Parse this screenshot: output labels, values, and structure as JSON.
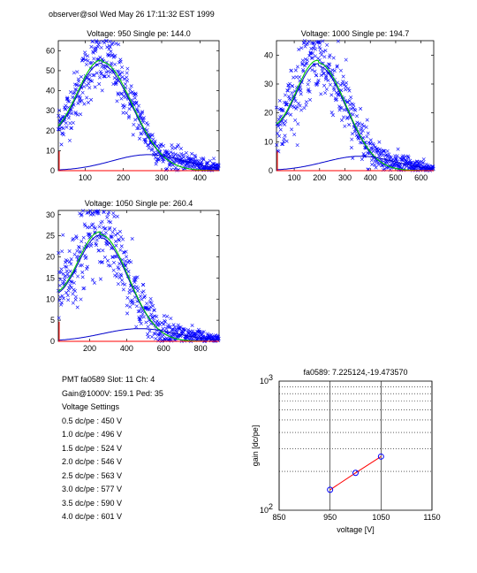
{
  "header": "observer@sol  Wed May 26 17:11:32 EST 1999",
  "info": {
    "line1": "PMT fa0589 Slot: 11 Ch: 4",
    "line2": "Gain@1000V: 159.1 Ped: 35",
    "line3": "Voltage Settings",
    "settings": [
      "0.5 dc/pe : 450 V",
      "1.0 dc/pe : 496 V",
      "1.5 dc/pe : 524 V",
      "2.0 dc/pe : 546 V",
      "2.5 dc/pe : 563 V",
      "3.0 dc/pe : 577 V",
      "3.5 dc/pe : 590 V",
      "4.0 dc/pe : 601 V"
    ]
  },
  "colors": {
    "data": "#0000ff",
    "fit_total": "#00cc00",
    "component": "#0000cc",
    "red": "#ff0000",
    "axis": "#000000"
  },
  "chart_data": [
    {
      "type": "scatter",
      "title": "Voltage: 950 Single pe: 144.0",
      "xlim": [
        30,
        450
      ],
      "ylim": [
        0,
        65
      ],
      "xticks": [
        100,
        200,
        300,
        400
      ],
      "yticks": [
        0,
        10,
        20,
        30,
        40,
        50,
        60
      ],
      "fit": {
        "peak_x": 144,
        "amplitude": 54,
        "sigma_left": 70,
        "sigma_right": 80,
        "offset_y": 8
      },
      "wide": {
        "peak_x": 265,
        "amplitude": 8,
        "sigma": 95
      }
    },
    {
      "type": "scatter",
      "title": "Voltage: 1000 Single pe: 194.7",
      "xlim": [
        30,
        650
      ],
      "ylim": [
        0,
        45
      ],
      "xticks": [
        100,
        200,
        300,
        400,
        500,
        600
      ],
      "yticks": [
        0,
        10,
        20,
        30,
        40
      ],
      "fit": {
        "peak_x": 195,
        "amplitude": 37,
        "sigma_left": 95,
        "sigma_right": 110,
        "offset_y": 8
      },
      "wide": {
        "peak_x": 360,
        "amplitude": 5,
        "sigma": 140
      }
    },
    {
      "type": "scatter",
      "title": "Voltage: 1050 Single pe: 260.4",
      "xlim": [
        30,
        900
      ],
      "ylim": [
        0,
        31
      ],
      "xticks": [
        200,
        400,
        600,
        800
      ],
      "yticks": [
        0,
        5,
        10,
        15,
        20,
        25,
        30
      ],
      "fit": {
        "peak_x": 260,
        "amplitude": 25,
        "sigma_left": 135,
        "sigma_right": 150,
        "offset_y": 6
      },
      "wide": {
        "peak_x": 470,
        "amplitude": 3,
        "sigma": 200
      }
    },
    {
      "type": "line",
      "title": "fa0589: 7.225124,-19.473570",
      "xlabel": "voltage [V]",
      "ylabel": "gain [dc/pe]",
      "xlim": [
        850,
        1150
      ],
      "ylim_log10": [
        2,
        3
      ],
      "xticks": [
        850,
        950,
        1050,
        1150
      ],
      "yticks": [
        "10^2",
        "10^3"
      ],
      "points": [
        {
          "x": 950,
          "y": 144.0
        },
        {
          "x": 1000,
          "y": 194.7
        },
        {
          "x": 1050,
          "y": 260.4
        }
      ]
    }
  ]
}
